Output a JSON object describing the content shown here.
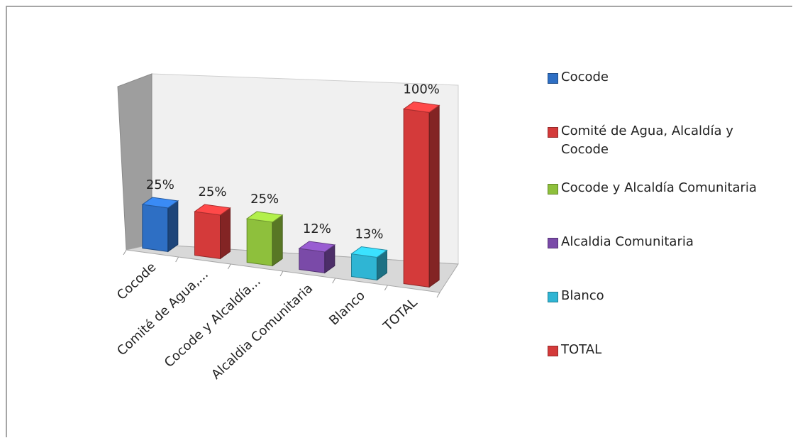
{
  "chart_data": {
    "type": "bar",
    "categories": [
      "Cocode",
      "Comité de Agua, Alcaldía y Cocode",
      "Cocode y Alcaldía Comunitaria",
      "Alcaldia Comunitaria",
      "Blanco",
      "TOTAL"
    ],
    "category_tick_labels": [
      "Cocode",
      "Comité de Agua,...",
      "Cocode y Alcaldía...",
      "Alcaldia Comunitaria",
      "Blanco",
      "TOTAL"
    ],
    "values": [
      25,
      25,
      25,
      12,
      13,
      100
    ],
    "data_labels": [
      "25%",
      "25%",
      "25%",
      "12%",
      "13%",
      "100%"
    ],
    "colors": [
      "#2e6fc4",
      "#d43a3a",
      "#8ec03c",
      "#7a4aa8",
      "#2fb5d4",
      "#d43a3a"
    ],
    "ylim": [
      0,
      100
    ],
    "legend_position": "right",
    "grid": false
  },
  "legend": {
    "items": [
      {
        "label": "Cocode",
        "color": "#2e6fc4"
      },
      {
        "label": "Comité de Agua, Alcaldía y Cocode",
        "color": "#d43a3a"
      },
      {
        "label": "Cocode y Alcaldía Comunitaria",
        "color": "#8ec03c"
      },
      {
        "label": "Alcaldia Comunitaria",
        "color": "#7a4aa8"
      },
      {
        "label": "Blanco",
        "color": "#2fb5d4"
      },
      {
        "label": "TOTAL",
        "color": "#d43a3a"
      }
    ]
  }
}
